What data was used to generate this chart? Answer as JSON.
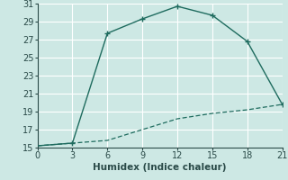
{
  "line1_x": [
    0,
    3,
    6,
    9,
    12,
    15,
    18,
    21
  ],
  "line1_y": [
    15.2,
    15.5,
    27.7,
    29.3,
    30.7,
    29.7,
    26.8,
    19.8
  ],
  "line2_x": [
    0,
    3,
    6,
    9,
    12,
    15,
    18,
    21
  ],
  "line2_y": [
    15.2,
    15.5,
    15.8,
    17.0,
    18.2,
    18.8,
    19.2,
    19.8
  ],
  "color": "#2e8b7a",
  "xlabel": "Humidex (Indice chaleur)",
  "xlim": [
    0,
    21
  ],
  "ylim": [
    15,
    31
  ],
  "xticks": [
    0,
    3,
    6,
    9,
    12,
    15,
    18,
    21
  ],
  "yticks": [
    15,
    17,
    19,
    21,
    23,
    25,
    27,
    29,
    31
  ],
  "bg_color": "#cde8e4",
  "grid_color": "#ffffff",
  "line_color": "#1e6b5e",
  "tick_color": "#2a4a48",
  "xlabel_fontsize": 7.5,
  "tick_fontsize": 7.0,
  "linewidth1": 1.0,
  "linewidth2": 0.9
}
